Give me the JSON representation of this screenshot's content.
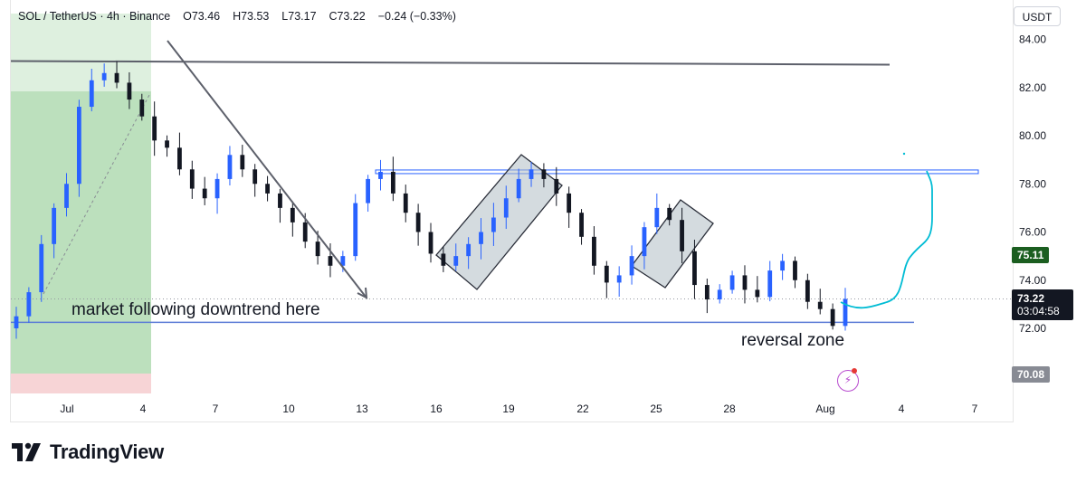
{
  "header": {
    "symbol": "SOL / TetherUS",
    "interval": "4h",
    "exchange": "Binance",
    "open": "O73.46",
    "high": "H73.53",
    "low": "L73.17",
    "close": "C73.22",
    "change": "−0.24 (−0.33%)"
  },
  "currency": "USDT",
  "price_tags": {
    "green_value": "75.11",
    "current_price": "73.22",
    "countdown": "03:04:58",
    "grey_value": "70.08"
  },
  "annotations": {
    "downtrend_text": "market following downtrend here",
    "reversal_text": "reversal zone"
  },
  "branding": {
    "logo_text": "TradingView"
  },
  "colors": {
    "up": "#2962ff",
    "down": "#131722",
    "green_zone": "#c8e6c9",
    "red_zone": "#f7d4d6",
    "forecast": "#00bcd4",
    "tag_green": "#1b5e20",
    "tag_black": "#131722",
    "tag_grey": "#888b94"
  },
  "chart_data": {
    "type": "candlestick",
    "y_ticks": [
      "84.00",
      "82.00",
      "80.00",
      "78.00",
      "76.00",
      "74.00",
      "72.00"
    ],
    "x_ticks": [
      "Jul",
      "4",
      "7",
      "10",
      "13",
      "16",
      "19",
      "22",
      "25",
      "28",
      "Aug",
      "4",
      "7"
    ],
    "ylim": [
      69.5,
      85.0
    ],
    "levels": {
      "upper_resistance_start": 83.1,
      "upper_resistance_end": 82.95,
      "resistance": 78.5,
      "support": 72.25
    },
    "close_path": [
      72.5,
      73.5,
      75.5,
      77.0,
      78.0,
      81.2,
      82.3,
      82.6,
      82.2,
      81.5,
      80.8,
      79.8,
      79.5,
      78.6,
      77.8,
      77.4,
      78.2,
      79.2,
      78.6,
      78.0,
      77.6,
      77.0,
      76.4,
      75.6,
      75.0,
      74.6,
      75.0,
      77.2,
      78.2,
      78.5,
      77.6,
      76.8,
      76.0,
      75.1,
      74.6,
      75.0,
      75.5,
      76.0,
      76.6,
      77.4,
      78.2,
      78.6,
      78.2,
      77.6,
      76.8,
      75.8,
      74.6,
      73.9,
      74.2,
      75.0,
      76.2,
      77.0,
      76.5,
      75.2,
      73.8,
      73.2,
      73.6,
      74.2,
      73.6,
      73.3,
      74.4,
      74.8,
      74.0,
      73.1,
      72.8,
      72.1,
      73.22
    ]
  }
}
